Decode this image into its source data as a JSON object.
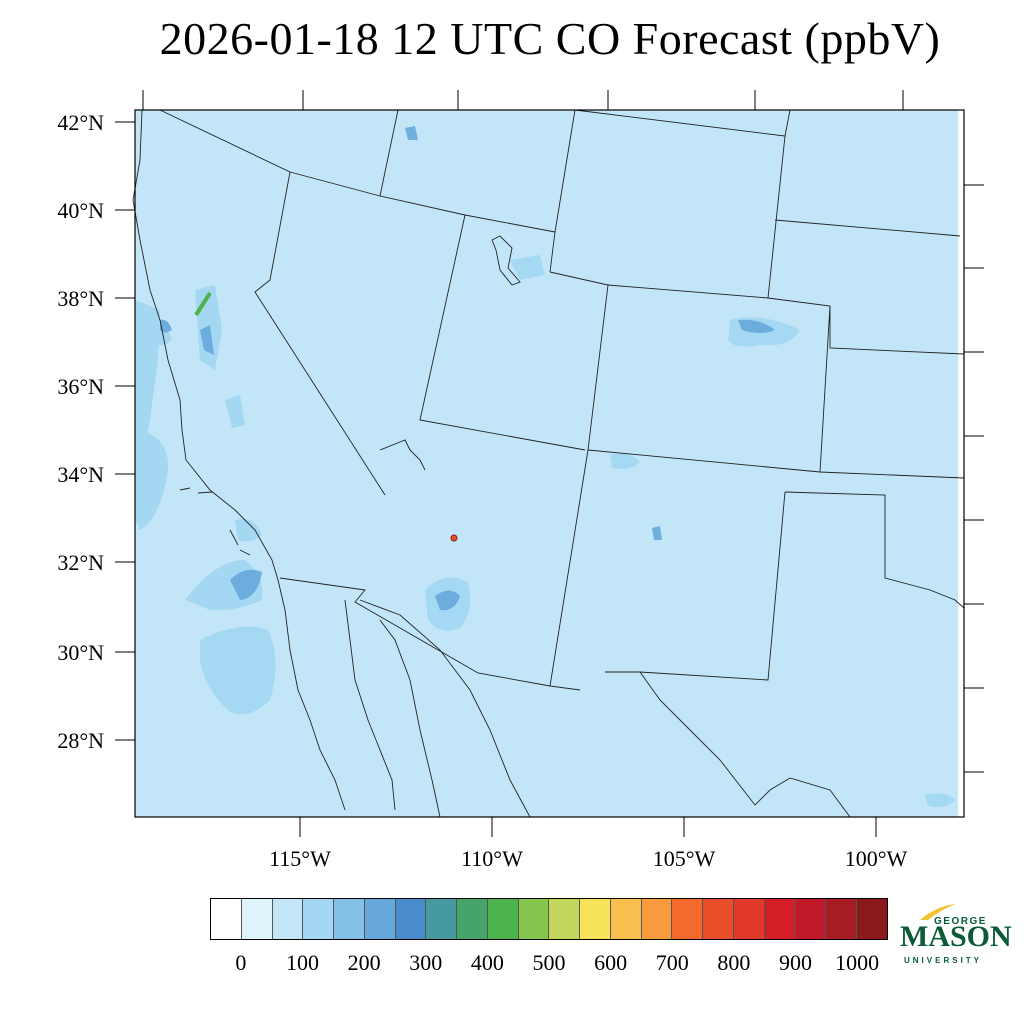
{
  "title": "2026-01-18 12 UTC CO Forecast (ppbV)",
  "map": {
    "background_color": "#c2e6f7",
    "lat_labels": [
      "42°N",
      "40°N",
      "38°N",
      "36°N",
      "34°N",
      "32°N",
      "30°N",
      "28°N"
    ],
    "lon_labels": [
      "115°W",
      "110°W",
      "105°W",
      "100°W"
    ]
  },
  "colorbar": {
    "colors": [
      "#ffffff",
      "#dff3fb",
      "#c2e6f7",
      "#a3d7f2",
      "#85c0e6",
      "#66a8dc",
      "#4a8ccb",
      "#46999e",
      "#46a36a",
      "#4db34d",
      "#86c64d",
      "#c3d65c",
      "#f7e35a",
      "#f9bf4f",
      "#f89b3f",
      "#f46a2e",
      "#e84e2a",
      "#e0392a",
      "#d21f27",
      "#c2182a",
      "#a51c22",
      "#8c1a1b"
    ],
    "labels": [
      "0",
      "100",
      "200",
      "300",
      "400",
      "500",
      "600",
      "700",
      "800",
      "900",
      "1000"
    ]
  },
  "logo": {
    "line1": "GEORGE",
    "line2": "MASON",
    "line3": "UNIVERSITY"
  }
}
